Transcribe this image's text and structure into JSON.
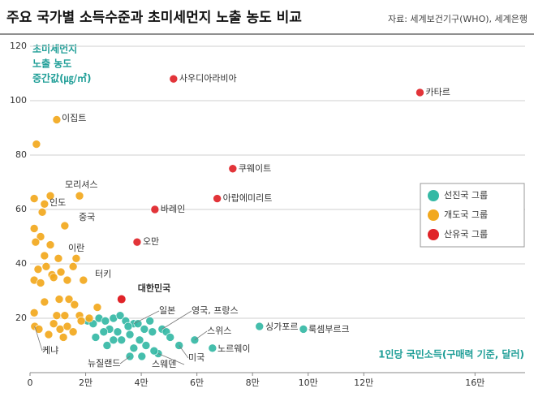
{
  "chart_data": {
    "type": "scatter",
    "title": "주요 국가별 소득수준과 초미세먼지 노출 농도 비교",
    "source": "자료: 세계보건기구(WHO), 세계은행",
    "ylabel": [
      "초미세먼지",
      "노출 농도",
      "중간값(㎍/㎥)"
    ],
    "xlabel": "1인당 국민소득(구매력 기준, 달러)",
    "xlim": [
      0,
      178000
    ],
    "ylim": [
      0,
      120
    ],
    "xticks": [
      0,
      {
        "value": 20000,
        "label": "2만"
      },
      {
        "value": 40000,
        "label": "4만"
      },
      {
        "value": 60000,
        "label": "6만"
      },
      {
        "value": 80000,
        "label": "8만"
      },
      {
        "value": 100000,
        "label": "10만"
      },
      {
        "value": 120000,
        "label": "12만"
      },
      {
        "value": 160000,
        "label": "16만"
      }
    ],
    "yticks": [
      20,
      40,
      60,
      80,
      100,
      120
    ],
    "grid": true,
    "legend": "right",
    "series": [
      {
        "name": "선진국 그룹",
        "color": "#35b9a5",
        "x": [
          37300,
          47500,
          59200,
          82500,
          98300,
          65600,
          53600,
          46100,
          35900,
          20700,
          22700,
          24800,
          27100,
          30000,
          32400,
          34400,
          28600,
          26500,
          31500,
          35300,
          38800,
          41100,
          43100,
          44000,
          49000,
          39400,
          41700,
          37300,
          32900,
          30000,
          40200,
          50400,
          23600,
          27700,
          44600,
          35900
        ],
        "values": [
          18,
          16,
          12,
          17,
          16,
          9,
          10,
          7,
          6,
          19,
          18,
          20,
          19,
          20,
          21,
          19,
          16,
          15,
          15,
          17,
          18,
          16,
          19,
          15,
          15,
          12,
          10,
          9,
          12,
          12,
          6,
          13,
          13,
          10,
          8,
          14
        ],
        "labels": [
          "일본",
          "영국, 프랑스",
          "스위스",
          "싱가포르",
          "룩셈부르크",
          "노르웨이",
          "미국",
          "스웨덴",
          "뉴질랜드",
          null,
          null,
          null,
          null,
          null,
          null,
          null,
          null,
          null,
          null,
          null,
          null,
          null,
          null,
          null,
          null,
          null,
          null,
          null,
          null,
          null,
          null,
          null,
          null,
          null,
          null,
          null
        ]
      },
      {
        "name": "개도국 그룹",
        "color": "#f2a81d",
        "x": [
          9600,
          17800,
          5200,
          12500,
          16600,
          19200,
          1700,
          2300,
          1500,
          4400,
          7300,
          1500,
          3800,
          2000,
          7300,
          10200,
          5200,
          2900,
          5800,
          7900,
          11100,
          1500,
          3800,
          8500,
          13400,
          15500,
          1500,
          5200,
          10500,
          14000,
          16000,
          24200,
          9600,
          12500,
          17800,
          8500,
          10800,
          13400,
          18400,
          21300,
          3200,
          6700,
          12000,
          15500
        ],
        "values": [
          93,
          65,
          62,
          54,
          42,
          34,
          17,
          84,
          64,
          59,
          65,
          53,
          50,
          48,
          47,
          42,
          43,
          38,
          39,
          36,
          37,
          34,
          33,
          35,
          34,
          39,
          22,
          26,
          27,
          27,
          25,
          24,
          21,
          21,
          21,
          18,
          16,
          17,
          19,
          20,
          16,
          14,
          13,
          15
        ],
        "labels": [
          "이집트",
          "모리셔스",
          "인도",
          "중국",
          "이란",
          "터키",
          "케냐",
          null,
          null,
          null,
          null,
          null,
          null,
          null,
          null,
          null,
          null,
          null,
          null,
          null,
          null,
          null,
          null,
          null,
          null,
          null,
          null,
          null,
          null,
          null,
          null,
          null,
          null,
          null,
          null,
          null,
          null,
          null,
          null,
          null,
          null,
          null,
          null,
          null
        ]
      },
      {
        "name": "산유국 그룹",
        "color": "#e02328",
        "x": [
          51600,
          140200,
          72900,
          67300,
          44900,
          38500
        ],
        "values": [
          108,
          103,
          75,
          64,
          60,
          48
        ],
        "labels": [
          "사우디아라비아",
          "카타르",
          "쿠웨이트",
          "아랍에미리트",
          "바레인",
          "오만"
        ]
      }
    ],
    "highlight": {
      "label": "대한민국",
      "x": 32900,
      "value": 27,
      "color": "#e02328"
    }
  }
}
